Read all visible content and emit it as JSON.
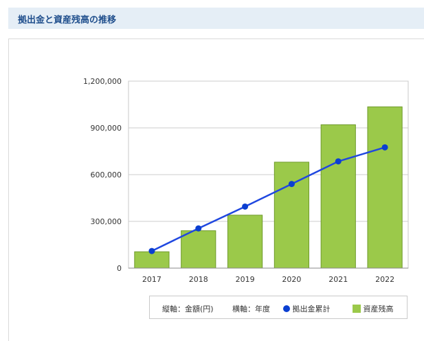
{
  "header": {
    "title": "拠出金と資産残高の推移"
  },
  "legend": {
    "vertical_axis": "縦軸：金額(円)",
    "horizontal_axis": "横軸：年度",
    "line_series_name": "拠出金累計",
    "bar_series_name": "資産残高"
  },
  "colors": {
    "bar": "#9bc94a",
    "bar_stroke": "#6f9a2b",
    "line": "#1f47e0",
    "marker": "#0b3fd1",
    "header_bg": "#e5eef6",
    "title": "#1f4e8c"
  },
  "chart_data": {
    "type": "bar",
    "categories": [
      "2017",
      "2018",
      "2019",
      "2020",
      "2021",
      "2022"
    ],
    "series": [
      {
        "name": "資産残高",
        "type": "bar",
        "values": [
          105000,
          240000,
          340000,
          680000,
          920000,
          1035000
        ]
      },
      {
        "name": "拠出金累計",
        "type": "line",
        "values": [
          110000,
          255000,
          395000,
          540000,
          685000,
          775000
        ]
      }
    ],
    "ylim": [
      0,
      1200000
    ],
    "yticks": [
      0,
      300000,
      600000,
      900000,
      1200000
    ],
    "ytick_labels": [
      "0",
      "300,000",
      "600,000",
      "900,000",
      "1,200,000"
    ],
    "grid": true,
    "legend_position": "bottom"
  }
}
